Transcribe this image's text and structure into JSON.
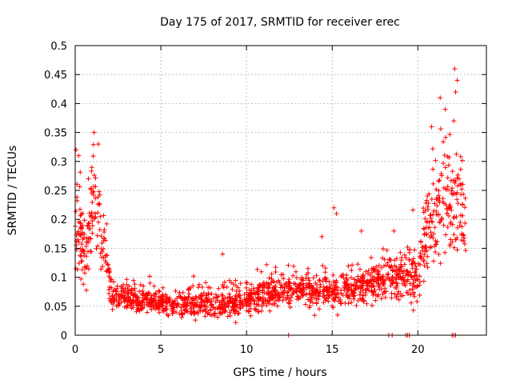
{
  "chart_data": {
    "type": "scatter",
    "title": "Day 175 of 2017, SRMTID for receiver erec",
    "xlabel": "GPS time / hours",
    "ylabel": "SRMTID / TECUs",
    "xlim": [
      0,
      24
    ],
    "ylim": [
      0,
      0.5
    ],
    "xticks": [
      0,
      5,
      10,
      15,
      20
    ],
    "xtick_labels": [
      "0",
      "5",
      "10",
      "15",
      "20"
    ],
    "yticks": [
      0,
      0.05,
      0.1,
      0.15,
      0.2,
      0.25,
      0.3,
      0.35,
      0.4,
      0.45,
      0.5
    ],
    "ytick_labels": [
      "0",
      "0.05",
      "0.1",
      "0.15",
      "0.2",
      "0.25",
      "0.3",
      "0.35",
      "0.4",
      "0.45",
      "0.5"
    ],
    "grid": true,
    "marker": "+",
    "color": "#ff0000",
    "series": [
      {
        "name": "SRMTID",
        "profile": [
          {
            "x": 0.0,
            "y": 0.19,
            "spread": 0.07
          },
          {
            "x": 0.3,
            "y": 0.17,
            "spread": 0.08
          },
          {
            "x": 0.6,
            "y": 0.12,
            "spread": 0.05
          },
          {
            "x": 1.0,
            "y": 0.22,
            "spread": 0.07
          },
          {
            "x": 1.4,
            "y": 0.2,
            "spread": 0.06
          },
          {
            "x": 1.8,
            "y": 0.13,
            "spread": 0.04
          },
          {
            "x": 2.1,
            "y": 0.07,
            "spread": 0.025
          },
          {
            "x": 5.0,
            "y": 0.055,
            "spread": 0.02
          },
          {
            "x": 8.0,
            "y": 0.055,
            "spread": 0.025
          },
          {
            "x": 10.0,
            "y": 0.06,
            "spread": 0.025
          },
          {
            "x": 12.5,
            "y": 0.08,
            "spread": 0.025
          },
          {
            "x": 15.0,
            "y": 0.075,
            "spread": 0.03
          },
          {
            "x": 17.5,
            "y": 0.09,
            "spread": 0.03
          },
          {
            "x": 19.0,
            "y": 0.1,
            "spread": 0.04
          },
          {
            "x": 20.0,
            "y": 0.1,
            "spread": 0.045
          },
          {
            "x": 20.5,
            "y": 0.17,
            "spread": 0.07
          },
          {
            "x": 21.0,
            "y": 0.2,
            "spread": 0.08
          },
          {
            "x": 21.5,
            "y": 0.24,
            "spread": 0.09
          },
          {
            "x": 22.0,
            "y": 0.22,
            "spread": 0.09
          },
          {
            "x": 22.5,
            "y": 0.23,
            "spread": 0.1
          },
          {
            "x": 22.8,
            "y": 0.18,
            "spread": 0.06
          }
        ],
        "x_start": 0.0,
        "x_end": 22.8,
        "point_count": 1700,
        "outliers": [
          {
            "x": 0.05,
            "y": 0.32
          },
          {
            "x": 0.2,
            "y": 0.31
          },
          {
            "x": 1.1,
            "y": 0.35
          },
          {
            "x": 1.35,
            "y": 0.33
          },
          {
            "x": 8.6,
            "y": 0.14
          },
          {
            "x": 15.1,
            "y": 0.22
          },
          {
            "x": 15.25,
            "y": 0.21
          },
          {
            "x": 14.4,
            "y": 0.17
          },
          {
            "x": 16.7,
            "y": 0.18
          },
          {
            "x": 18.6,
            "y": 0.18
          },
          {
            "x": 20.8,
            "y": 0.36
          },
          {
            "x": 21.3,
            "y": 0.41
          },
          {
            "x": 21.6,
            "y": 0.39
          },
          {
            "x": 22.15,
            "y": 0.46
          },
          {
            "x": 22.3,
            "y": 0.44
          },
          {
            "x": 22.2,
            "y": 0.42
          },
          {
            "x": 22.1,
            "y": 0.37
          }
        ],
        "zero_points_x": [
          12.45,
          18.3,
          18.5,
          19.3,
          19.4,
          19.5,
          22.0,
          22.1,
          22.2
        ]
      }
    ]
  }
}
